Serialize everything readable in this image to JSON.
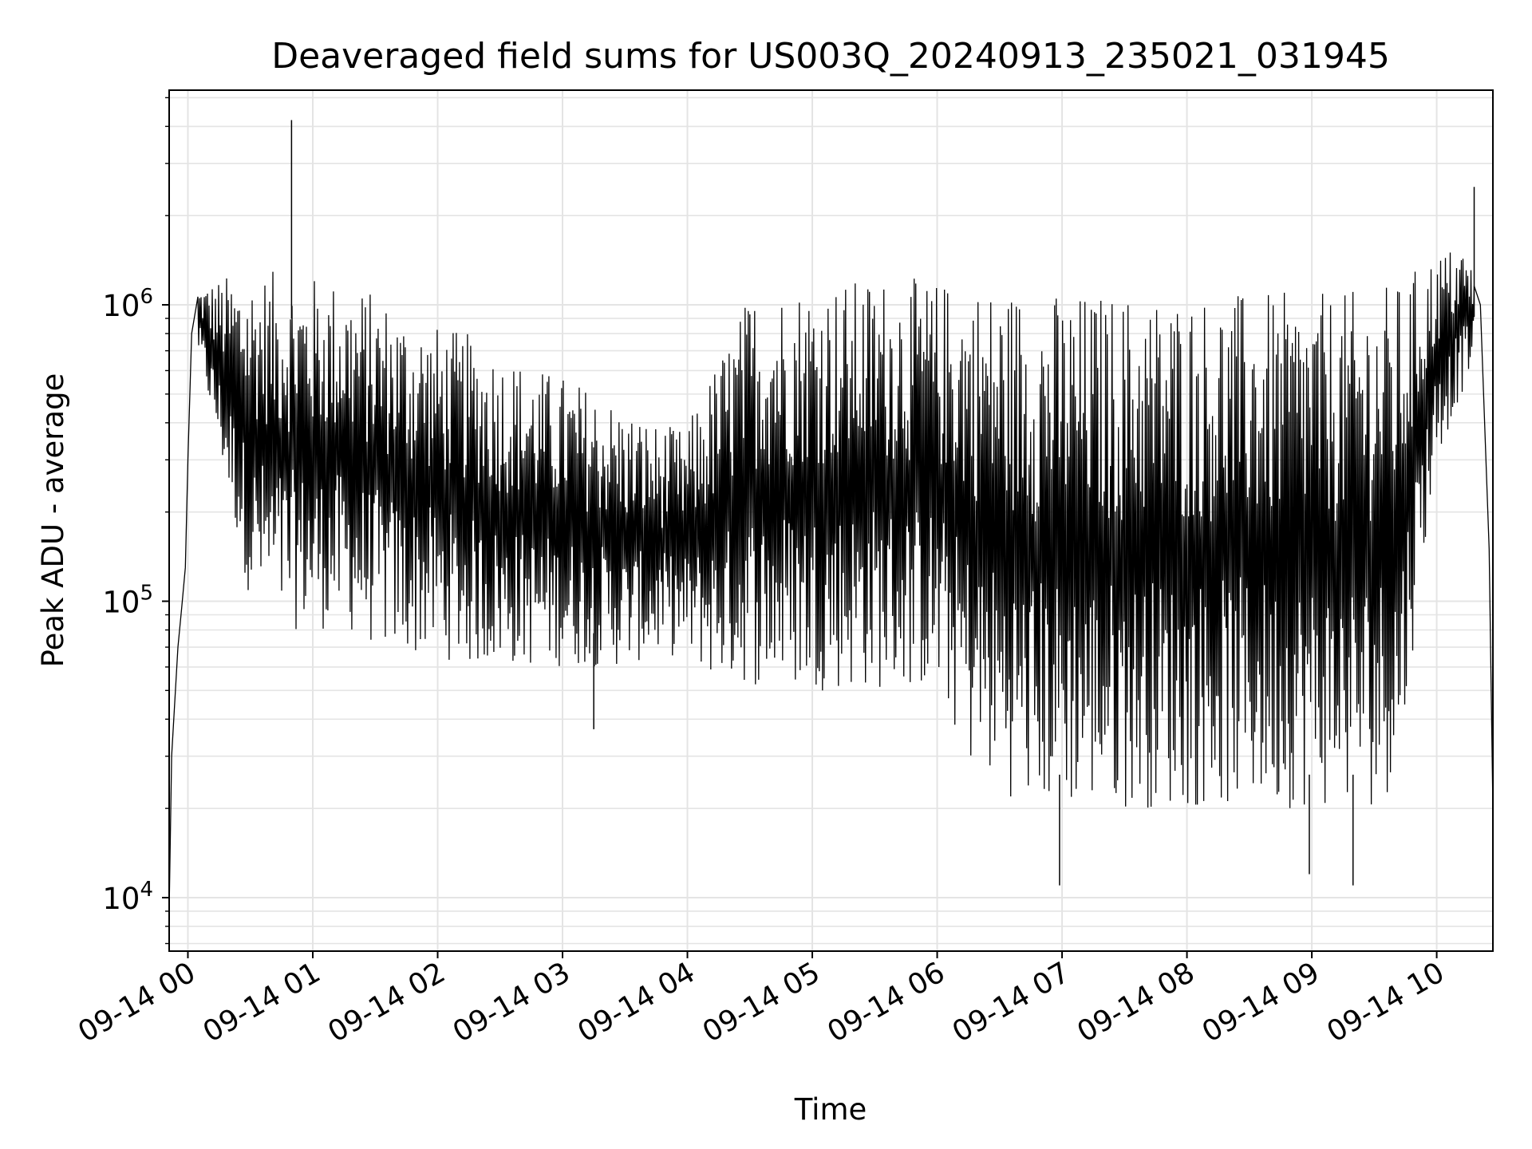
{
  "chart_data": {
    "type": "line",
    "title": "Deaveraged field sums for US003Q_20240913_235021_031945",
    "xlabel": "Time",
    "ylabel": "Peak ADU - average",
    "x_tick_labels": [
      "09-14 00",
      "09-14 01",
      "09-14 02",
      "09-14 03",
      "09-14 04",
      "09-14 05",
      "09-14 06",
      "09-14 07",
      "09-14 08",
      "09-14 09",
      "09-14 10"
    ],
    "y_tick_labels": [
      {
        "base": "10",
        "exp": "4",
        "value": 10000
      },
      {
        "base": "10",
        "exp": "5",
        "value": 100000
      },
      {
        "base": "10",
        "exp": "6",
        "value": 1000000
      }
    ],
    "x_range_hours": [
      -0.15,
      10.45
    ],
    "ylim": [
      6600,
      5300000
    ],
    "y_scale": "log",
    "grid": true,
    "line_color": "#000000",
    "grid_color": "#e4e4e4",
    "envelope": {
      "hours": [
        0.0,
        0.08,
        0.3,
        0.5,
        0.75,
        1.0,
        1.25,
        1.5,
        1.75,
        2.0,
        2.25,
        2.5,
        2.75,
        3.0,
        3.25,
        3.5,
        3.75,
        3.98,
        4.2,
        4.5,
        4.75,
        5.0,
        5.25,
        5.5,
        5.75,
        5.95,
        6.1,
        6.25,
        6.5,
        6.75,
        7.0,
        7.25,
        7.5,
        7.75,
        8.0,
        8.25,
        8.5,
        8.75,
        9.0,
        9.25,
        9.5,
        9.7,
        9.85,
        10.0,
        10.2,
        10.3
      ],
      "high": [
        1000000,
        1150000,
        1250000,
        1300000,
        1300000,
        1250000,
        1200000,
        1100000,
        950000,
        850000,
        800000,
        700000,
        620000,
        580000,
        520000,
        450000,
        400000,
        380000,
        600000,
        1100000,
        1150000,
        1200000,
        1200000,
        1250000,
        1250000,
        1200000,
        1200000,
        1200000,
        1150000,
        1150000,
        1100000,
        1100000,
        1100000,
        1100000,
        1100000,
        1100000,
        1100000,
        1100000,
        1100000,
        1100000,
        1150000,
        1200000,
        1350000,
        1500000,
        1600000,
        1300000
      ],
      "low": [
        1000000,
        700000,
        250000,
        100000,
        80000,
        80000,
        80000,
        70000,
        65000,
        65000,
        60000,
        60000,
        60000,
        60000,
        60000,
        60000,
        65000,
        65000,
        55000,
        52000,
        50000,
        50000,
        50000,
        50000,
        50000,
        50000,
        40000,
        28000,
        23000,
        20000,
        20000,
        20000,
        20000,
        20000,
        20000,
        20000,
        20000,
        20000,
        20000,
        20000,
        20000,
        25000,
        100000,
        300000,
        500000,
        650000
      ]
    },
    "spikes": [
      {
        "hour": 0.83,
        "value": 4200000
      },
      {
        "hour": 10.3,
        "value": 2500000
      },
      {
        "hour": 6.98,
        "value": 11000
      },
      {
        "hour": 9.33,
        "value": 11000
      },
      {
        "hour": 8.98,
        "value": 12000
      },
      {
        "hour": 3.25,
        "value": 37000
      }
    ],
    "start": {
      "hour": -0.15,
      "value": 9000
    },
    "rise": [
      {
        "hour": -0.13,
        "value": 30000
      },
      {
        "hour": -0.08,
        "value": 70000
      },
      {
        "hour": -0.05,
        "value": 95000
      },
      {
        "hour": -0.02,
        "value": 130000
      },
      {
        "hour": 0.0,
        "value": 300000
      },
      {
        "hour": 0.03,
        "value": 800000
      }
    ],
    "fall": [
      {
        "hour": 10.35,
        "value": 1000000
      },
      {
        "hour": 10.42,
        "value": 150000
      },
      {
        "hour": 10.45,
        "value": 20000
      }
    ]
  }
}
